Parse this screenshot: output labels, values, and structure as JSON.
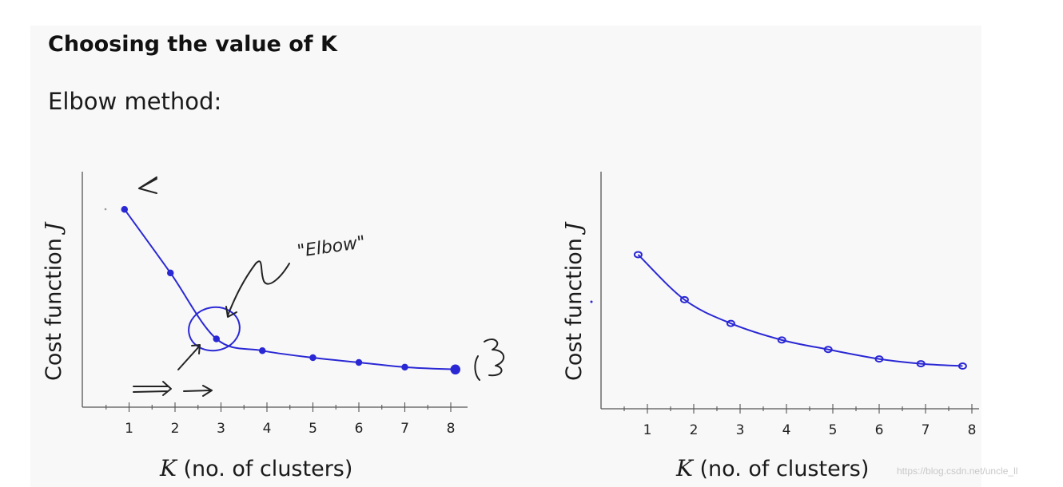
{
  "title": "Choosing the value of K",
  "subtitle": "Elbow method:",
  "watermark": "https://blog.csdn.net/uncle_ll",
  "colors": {
    "curve": "#2a28d4",
    "ink": "#222222"
  },
  "chart_data": [
    {
      "type": "line",
      "title": "",
      "xlabel_var": "K",
      "xlabel": "(no. of clusters)",
      "ylabel": "Cost function",
      "ylabel_var": "J",
      "xlim": [
        0,
        8.5
      ],
      "ylim": [
        0,
        10
      ],
      "xticks": [
        "1",
        "2",
        "3",
        "4",
        "5",
        "6",
        "7",
        "8"
      ],
      "grid": false,
      "x": [
        0.9,
        1.9,
        2.9,
        3.9,
        5.0,
        6.0,
        7.0,
        8.1
      ],
      "y": [
        8.4,
        5.7,
        2.9,
        2.4,
        2.1,
        1.9,
        1.7,
        1.6
      ],
      "annotations": {
        "elbow": "\"Elbow\"",
        "end_mark": "(3)"
      }
    },
    {
      "type": "line",
      "title": "",
      "xlabel_var": "K",
      "xlabel": "(no. of clusters)",
      "ylabel": "Cost function",
      "ylabel_var": "J",
      "xlim": [
        0,
        8.5
      ],
      "ylim": [
        0,
        10
      ],
      "xticks": [
        "1",
        "2",
        "3",
        "4",
        "5",
        "6",
        "7",
        "8"
      ],
      "grid": false,
      "x": [
        0.8,
        1.8,
        2.8,
        3.9,
        4.9,
        6.0,
        6.9,
        7.8
      ],
      "y": [
        6.5,
        4.6,
        3.6,
        2.9,
        2.5,
        2.1,
        1.9,
        1.8
      ]
    }
  ]
}
